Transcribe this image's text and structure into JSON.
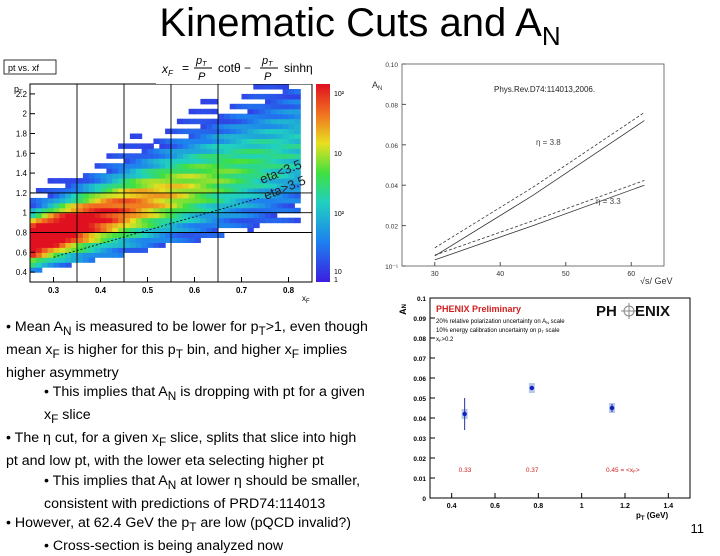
{
  "slide": {
    "title_main": "Kinematic Cuts and A",
    "title_sub": "N",
    "page_number": "11"
  },
  "left_plot": {
    "title": "pt vs. xf",
    "ylabel": "p",
    "ylabel_sub": "T",
    "xlabel": "x",
    "xlabel_sub": "F",
    "yticks": [
      "2.2",
      "2",
      "1.8",
      "1.6",
      "1.4",
      "1.2",
      "1",
      "0.8",
      "0.6",
      "0.4"
    ],
    "xticks": [
      "0.3",
      "0.4",
      "0.5",
      "0.6",
      "0.7",
      "0.8"
    ],
    "zticks": [
      "10²",
      "10",
      "10²",
      "10",
      "1"
    ],
    "annotation_eta_lt": "eta<3.5",
    "annotation_eta_gt": "eta>3.5",
    "formula": {
      "lhs": "x",
      "lhs_sub": "F",
      "eq": "=",
      "frac1_num_p": "p",
      "frac1_num_sub": "T",
      "frac1_den": "P",
      "cot": "cotθ −",
      "frac2_num_p": "p",
      "frac2_num_sub": "T",
      "frac2_den": "P",
      "sinh": "sinhη"
    }
  },
  "right_top_plot": {
    "ylabel": "A",
    "ylabel_sub": "N",
    "reference": "Phys.Rev.D74:114013,2006.",
    "yticks": [
      "0.10",
      "0.08",
      "0.06",
      "0.04",
      "0.02",
      "10⁻¹"
    ],
    "xticks": [
      "30",
      "40",
      "50",
      "60"
    ],
    "xlabel": "√s",
    "xlabel_unit": "/ GeV",
    "curve_label_1": "η = 3.8",
    "curve_label_2": "η = 3.3"
  },
  "right_bottom_plot": {
    "ylabel": "A",
    "ylabel_sub": "N",
    "legend_title": "PHENIX Preliminary",
    "legend_line1": "20% relative polarization uncertainty on A",
    "legend_line1_tail": "scale",
    "legend_line2": "10% energy calibration uncertainty on p",
    "legend_line2_tail": "scale",
    "legend_line3": "x",
    "legend_line3_tail": ">0.2",
    "logo_left": "PH",
    "logo_right": "ENIX",
    "yticks": [
      "0.1",
      "0.09",
      "0.08",
      "0.07",
      "0.06",
      "0.05",
      "0.04",
      "0.03",
      "0.02",
      "0.01",
      "0"
    ],
    "xticks": [
      "0.4",
      "0.6",
      "0.8",
      "1",
      "1.2",
      "1.4"
    ],
    "xlabel": "p",
    "xlabel_sub": "T",
    "xlabel_unit": "(GeV)",
    "point_labels": [
      "0.33",
      "0.37",
      "0.45 = <x"
    ],
    "point_label_tail": ">"
  },
  "chart_data": [
    {
      "type": "heatmap",
      "title": "pt vs. xf",
      "xlabel": "xF",
      "ylabel": "pT",
      "xlim": [
        0.25,
        0.85
      ],
      "ylim": [
        0.3,
        2.3
      ],
      "x_cut_lines": [
        0.35,
        0.45,
        0.55,
        0.65
      ],
      "y_cut_lines": [
        0.8,
        1.0,
        1.2
      ]
    },
    {
      "type": "line",
      "xlabel": "√s / GeV",
      "ylabel": "AN",
      "xlim": [
        25,
        65
      ],
      "ylim": [
        0.0,
        0.1
      ],
      "series": [
        {
          "name": "η = 3.8",
          "x": [
            30,
            45,
            62
          ],
          "y": [
            0.005,
            0.035,
            0.072
          ]
        },
        {
          "name": "η = 3.3",
          "x": [
            30,
            45,
            62
          ],
          "y": [
            0.003,
            0.02,
            0.04
          ]
        }
      ]
    },
    {
      "type": "scatter",
      "xlabel": "pT (GeV)",
      "ylabel": "AN",
      "xlim": [
        0.3,
        1.5
      ],
      "ylim": [
        0,
        0.1
      ],
      "series": [
        {
          "name": "PHENIX Preliminary",
          "x": [
            0.46,
            0.77,
            1.14
          ],
          "y": [
            0.042,
            0.055,
            0.045
          ],
          "yerr": [
            0.008,
            0.001,
            0.002
          ]
        }
      ]
    }
  ]
}
